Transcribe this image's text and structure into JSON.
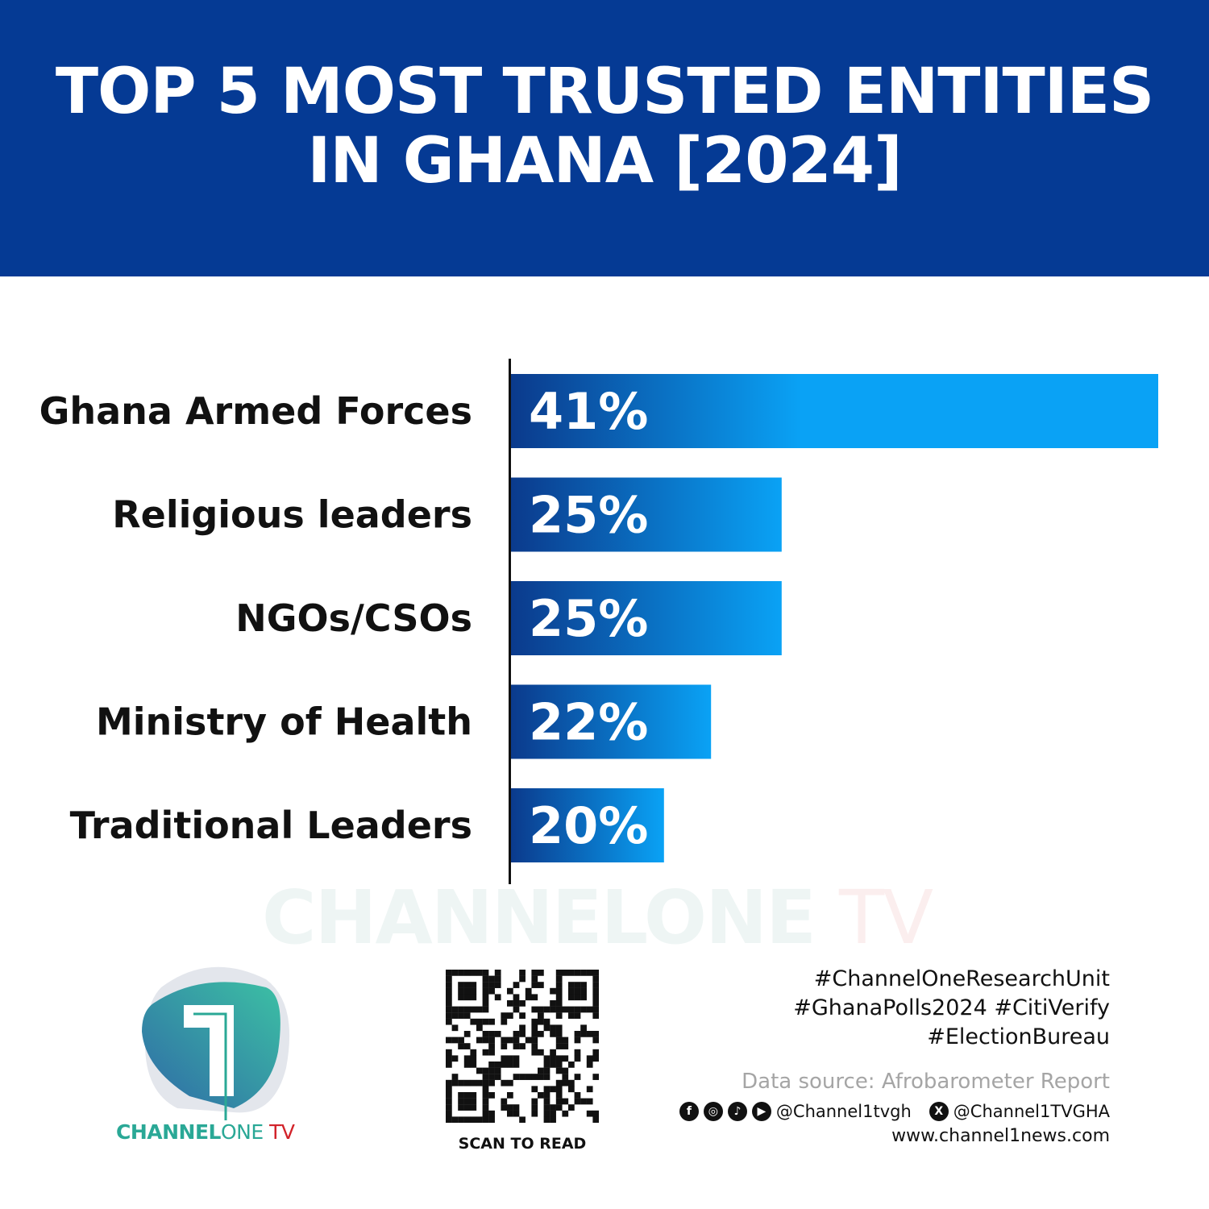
{
  "header": {
    "title_line1": "TOP 5 MOST TRUSTED ENTITIES",
    "title_line2": "IN GHANA [2024]"
  },
  "chart_data": {
    "type": "bar",
    "orientation": "horizontal",
    "title": "TOP 5 MOST TRUSTED ENTITIES IN GHANA [2024]",
    "categories": [
      "Ghana Armed Forces",
      "Religious leaders",
      "NGOs/CSOs",
      "Ministry of Health",
      "Traditional Leaders"
    ],
    "values": [
      41,
      25,
      25,
      22,
      20
    ],
    "value_labels": [
      "41%",
      "25%",
      "25%",
      "22%",
      "20%"
    ],
    "xlim": [
      13.5,
      41
    ],
    "grid": false,
    "bar_colors": {
      "start": "#0b3a8c",
      "end": "#0aa2f5"
    }
  },
  "watermark": {
    "part1": "CHANNELONE",
    "part2": "TV"
  },
  "logo": {
    "bold": "CHANNEL",
    "light": "ONE",
    "tv": " TV"
  },
  "qr": {
    "caption": "SCAN TO READ"
  },
  "footer": {
    "hashtags": [
      "#ChannelOneResearchUnit",
      "#GhanaPolls2024 #CitiVerify",
      "#ElectionBureau"
    ],
    "source": "Data source: Afrobarometer Report",
    "social_handle": "@Channel1tvgh",
    "x_handle": "@Channel1TVGHA",
    "website": "www.channel1news.com",
    "icons": [
      "facebook-icon",
      "instagram-icon",
      "tiktok-icon",
      "youtube-icon",
      "x-icon"
    ]
  },
  "colors": {
    "header": "#053a94",
    "brand_teal": "#2aa896",
    "brand_red": "#d2232a"
  }
}
